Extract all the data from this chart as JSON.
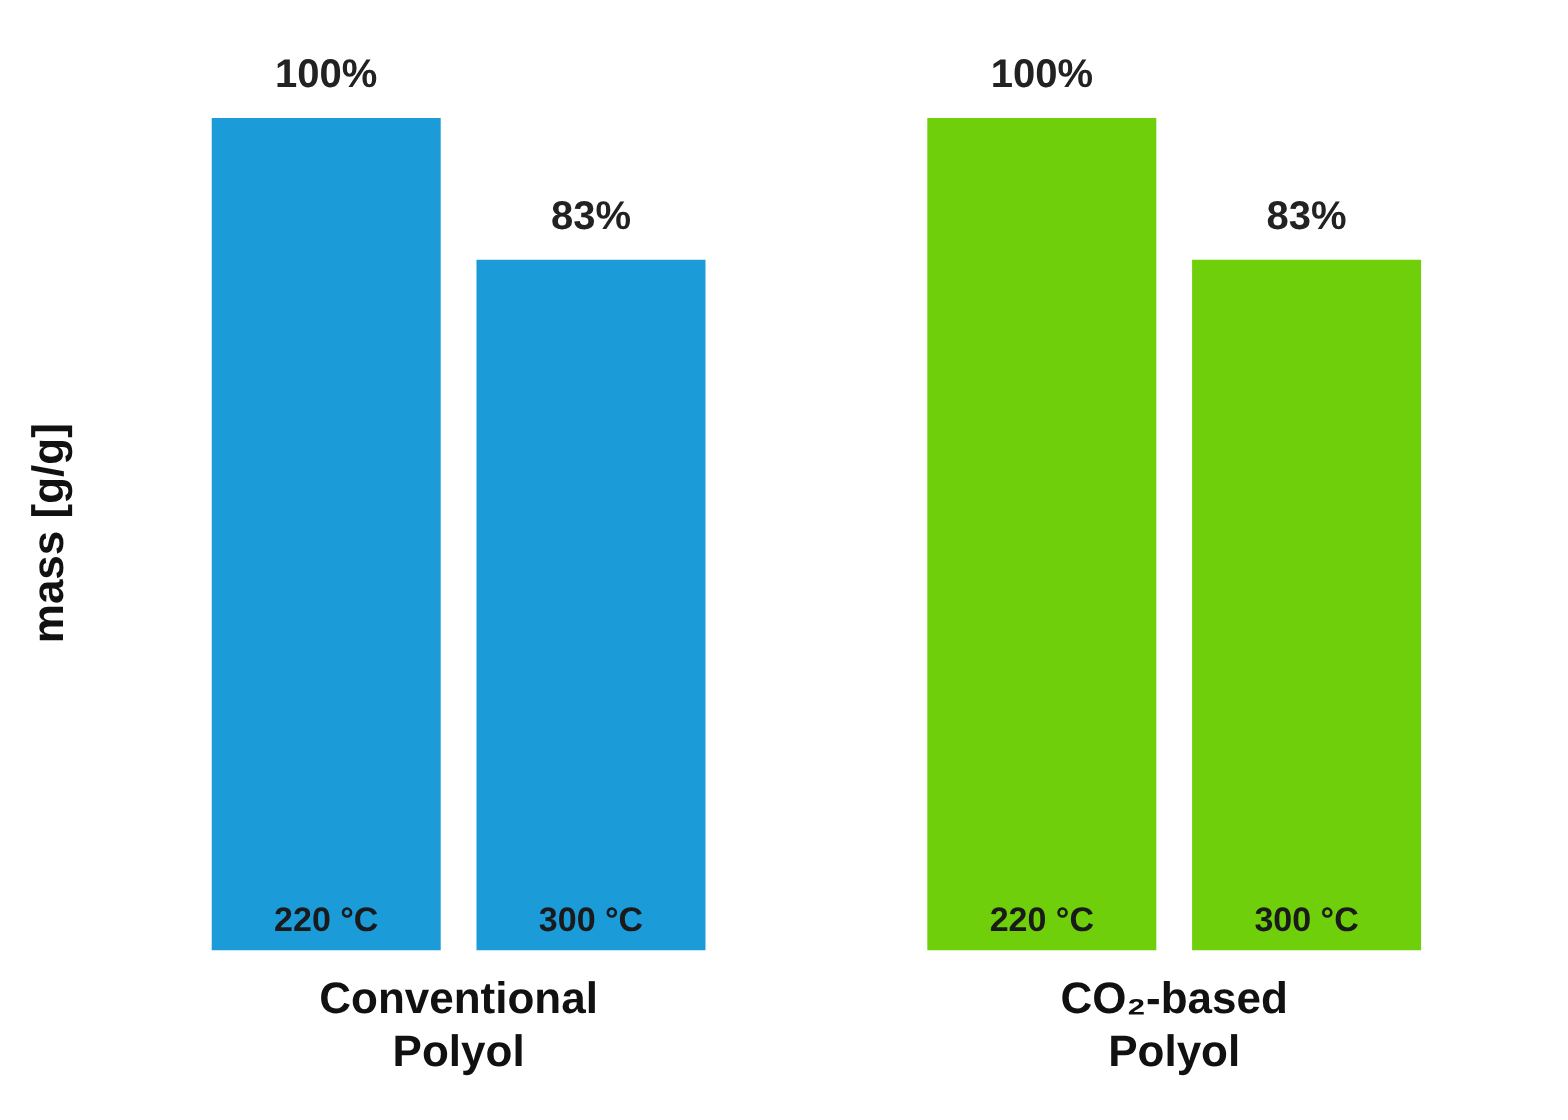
{
  "chart_data": {
    "type": "bar",
    "ylabel": "mass [g/g]",
    "categories": [
      "Conventional Polyol",
      "CO₂-based Polyol"
    ],
    "series": [
      {
        "name": "220 °C",
        "colors": [
          "#1b9bd7",
          "#6fcf0a"
        ],
        "values": [
          100,
          100
        ],
        "value_labels": [
          "100%",
          "100%"
        ]
      },
      {
        "name": "300 °C",
        "colors": [
          "#1b9bd7",
          "#6fcf0a"
        ],
        "values": [
          83,
          83
        ],
        "value_labels": [
          "83%",
          "83%"
        ]
      }
    ],
    "legend": false,
    "grid": false
  }
}
